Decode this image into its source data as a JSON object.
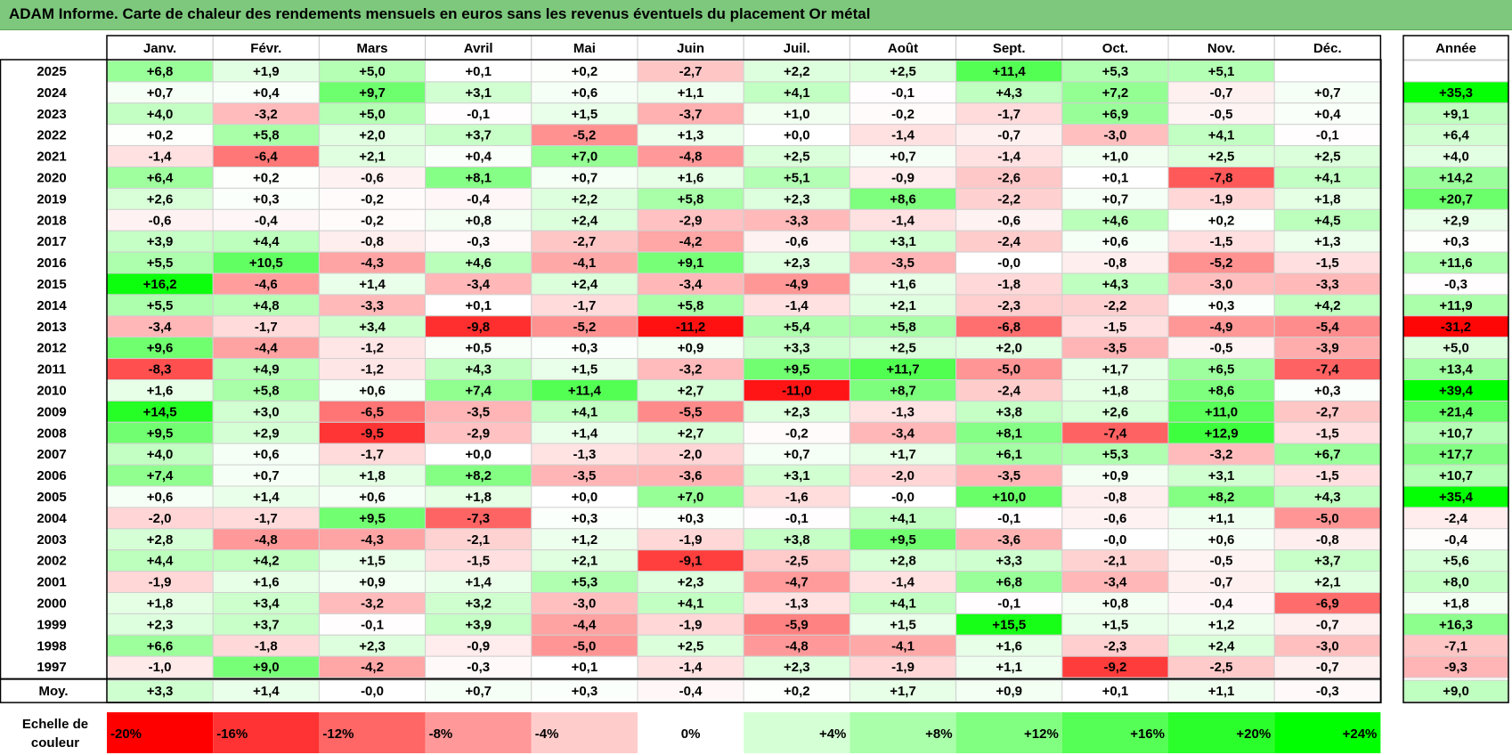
{
  "title": "ADAM Informe. Carte de chaleur des rendements mensuels en euros sans les revenus éventuels du placement Or métal",
  "chart_data": {
    "type": "heatmap",
    "title": "ADAM Informe. Carte de chaleur des rendements mensuels en euros sans les revenus éventuels du placement Or métal",
    "months": [
      "Janv.",
      "Févr.",
      "Mars",
      "Avril",
      "Mai",
      "Juin",
      "Juil.",
      "Août",
      "Sept.",
      "Oct.",
      "Nov.",
      "Déc."
    ],
    "annual_header": "Année",
    "years": [
      "2025",
      "2024",
      "2023",
      "2022",
      "2021",
      "2020",
      "2019",
      "2018",
      "2017",
      "2016",
      "2015",
      "2014",
      "2013",
      "2012",
      "2011",
      "2010",
      "2009",
      "2008",
      "2007",
      "2006",
      "2005",
      "2004",
      "2003",
      "2002",
      "2001",
      "2000",
      "1999",
      "1998",
      "1997"
    ],
    "values": [
      [
        "+6,8",
        "+1,9",
        "+5,0",
        "+0,1",
        "+0,2",
        "-2,7",
        "+2,2",
        "+2,5",
        "+11,4",
        "+5,3",
        "+5,1",
        ""
      ],
      [
        "+0,7",
        "+0,4",
        "+9,7",
        "+3,1",
        "+0,6",
        "+1,1",
        "+4,1",
        "-0,1",
        "+4,3",
        "+7,2",
        "-0,7",
        "+0,7"
      ],
      [
        "+4,0",
        "-3,2",
        "+5,0",
        "-0,1",
        "+1,5",
        "-3,7",
        "+1,0",
        "-0,2",
        "-1,7",
        "+6,9",
        "-0,5",
        "+0,4"
      ],
      [
        "+0,2",
        "+5,8",
        "+2,0",
        "+3,7",
        "-5,2",
        "+1,3",
        "+0,0",
        "-1,4",
        "-0,7",
        "-3,0",
        "+4,1",
        "-0,1"
      ],
      [
        "-1,4",
        "-6,4",
        "+2,1",
        "+0,4",
        "+7,0",
        "-4,8",
        "+2,5",
        "+0,7",
        "-1,4",
        "+1,0",
        "+2,5",
        "+2,5"
      ],
      [
        "+6,4",
        "+0,2",
        "-0,6",
        "+8,1",
        "+0,7",
        "+1,6",
        "+5,1",
        "-0,9",
        "-2,6",
        "+0,1",
        "-7,8",
        "+4,1"
      ],
      [
        "+2,6",
        "+0,3",
        "-0,2",
        "-0,4",
        "+2,2",
        "+5,8",
        "+2,3",
        "+8,6",
        "-2,2",
        "+0,7",
        "-1,9",
        "+1,8"
      ],
      [
        "-0,6",
        "-0,4",
        "-0,2",
        "+0,8",
        "+2,4",
        "-2,9",
        "-3,3",
        "-1,4",
        "-0,6",
        "+4,6",
        "+0,2",
        "+4,5"
      ],
      [
        "+3,9",
        "+4,4",
        "-0,8",
        "-0,3",
        "-2,7",
        "-4,2",
        "-0,6",
        "+3,1",
        "-2,4",
        "+0,6",
        "-1,5",
        "+1,3"
      ],
      [
        "+5,5",
        "+10,5",
        "-4,3",
        "+4,6",
        "-4,1",
        "+9,1",
        "+2,3",
        "-3,5",
        "-0,0",
        "-0,8",
        "-5,2",
        "-1,5"
      ],
      [
        "+16,2",
        "-4,6",
        "+1,4",
        "-3,4",
        "+2,4",
        "-3,4",
        "-4,9",
        "+1,6",
        "-1,8",
        "+4,3",
        "-3,0",
        "-3,3"
      ],
      [
        "+5,5",
        "+4,8",
        "-3,3",
        "+0,1",
        "-1,7",
        "+5,8",
        "-1,4",
        "+2,1",
        "-2,3",
        "-2,2",
        "+0,3",
        "+4,2"
      ],
      [
        "-3,4",
        "-1,7",
        "+3,4",
        "-9,8",
        "-5,2",
        "-11,2",
        "+5,4",
        "+5,8",
        "-6,8",
        "-1,5",
        "-4,9",
        "-5,4"
      ],
      [
        "+9,6",
        "-4,4",
        "-1,2",
        "+0,5",
        "+0,3",
        "+0,9",
        "+3,3",
        "+2,5",
        "+2,0",
        "-3,5",
        "-0,5",
        "-3,9"
      ],
      [
        "-8,3",
        "+4,9",
        "-1,2",
        "+4,3",
        "+1,5",
        "-3,2",
        "+9,5",
        "+11,7",
        "-5,0",
        "+1,7",
        "+6,5",
        "-7,4"
      ],
      [
        "+1,6",
        "+5,8",
        "+0,6",
        "+7,4",
        "+11,4",
        "+2,7",
        "-11,0",
        "+8,7",
        "-2,4",
        "+1,8",
        "+8,6",
        "+0,3"
      ],
      [
        "+14,5",
        "+3,0",
        "-6,5",
        "-3,5",
        "+4,1",
        "-5,5",
        "+2,3",
        "-1,3",
        "+3,8",
        "+2,6",
        "+11,0",
        "-2,7"
      ],
      [
        "+9,5",
        "+2,9",
        "-9,5",
        "-2,9",
        "+1,4",
        "+2,7",
        "-0,2",
        "-3,4",
        "+8,1",
        "-7,4",
        "+12,9",
        "-1,5"
      ],
      [
        "+4,0",
        "+0,6",
        "-1,7",
        "+0,0",
        "-1,3",
        "-2,0",
        "+0,7",
        "+1,7",
        "+6,1",
        "+5,3",
        "-3,2",
        "+6,7"
      ],
      [
        "+7,4",
        "+0,7",
        "+1,8",
        "+8,2",
        "-3,5",
        "-3,6",
        "+3,1",
        "-2,0",
        "-3,5",
        "+0,9",
        "+3,1",
        "-1,5"
      ],
      [
        "+0,6",
        "+1,4",
        "+0,6",
        "+1,8",
        "+0,0",
        "+7,0",
        "-1,6",
        "-0,0",
        "+10,0",
        "-0,8",
        "+8,2",
        "+4,3"
      ],
      [
        "-2,0",
        "-1,7",
        "+9,5",
        "-7,3",
        "+0,3",
        "+0,3",
        "-0,1",
        "+4,1",
        "-0,1",
        "-0,6",
        "+1,1",
        "-5,0"
      ],
      [
        "+2,8",
        "-4,8",
        "-4,3",
        "-2,1",
        "+1,2",
        "-1,9",
        "+3,8",
        "+9,5",
        "-3,6",
        "-0,0",
        "+0,6",
        "-0,8"
      ],
      [
        "+4,4",
        "+4,2",
        "+1,5",
        "-1,5",
        "+2,1",
        "-9,1",
        "-2,5",
        "+2,8",
        "+3,3",
        "-2,1",
        "-0,5",
        "+3,7"
      ],
      [
        "-1,9",
        "+1,6",
        "+0,9",
        "+1,4",
        "+5,3",
        "+2,3",
        "-4,7",
        "-1,4",
        "+6,8",
        "-3,4",
        "-0,7",
        "+2,1"
      ],
      [
        "+1,8",
        "+3,4",
        "-3,2",
        "+3,2",
        "-3,0",
        "+4,1",
        "-1,3",
        "+4,1",
        "-0,1",
        "+0,8",
        "-0,4",
        "-6,9"
      ],
      [
        "+2,3",
        "+3,7",
        "-0,1",
        "+3,9",
        "-4,4",
        "-1,9",
        "-5,9",
        "+1,5",
        "+15,5",
        "+1,5",
        "+1,2",
        "-0,7"
      ],
      [
        "+6,6",
        "-1,8",
        "+2,3",
        "-0,9",
        "-5,0",
        "+2,5",
        "-4,8",
        "-4,1",
        "+1,6",
        "-2,3",
        "+2,4",
        "-3,0"
      ],
      [
        "-1,0",
        "+9,0",
        "-4,2",
        "-0,3",
        "+0,1",
        "-1,4",
        "+2,3",
        "-1,9",
        "+1,1",
        "-9,2",
        "-2,5",
        "-0,7"
      ]
    ],
    "annual": [
      "",
      "+35,3",
      "+9,1",
      "+6,4",
      "+4,0",
      "+14,2",
      "+20,7",
      "+2,9",
      "+0,3",
      "+11,6",
      "-0,3",
      "+11,9",
      "-31,2",
      "+5,0",
      "+13,4",
      "+39,4",
      "+21,4",
      "+10,7",
      "+17,7",
      "+10,7",
      "+35,4",
      "-2,4",
      "-0,4",
      "+5,6",
      "+8,0",
      "+1,8",
      "+16,3",
      "-7,1",
      "-9,3"
    ],
    "average_label": "Moy.",
    "averages": [
      "+3,3",
      "+1,4",
      "-0,0",
      "+0,7",
      "+0,3",
      "-0,4",
      "+0,2",
      "+1,7",
      "+0,9",
      "+0,1",
      "+1,1",
      "-0,3"
    ],
    "average_annual": "+9,0",
    "scale_label": "Echelle de couleur",
    "scale": [
      "-20%",
      "-16%",
      "-12%",
      "-8%",
      "-4%",
      "0%",
      "+4%",
      "+8%",
      "+12%",
      "+16%",
      "+20%",
      "+24%"
    ],
    "scale_values": [
      -20,
      -16,
      -12,
      -8,
      -4,
      0,
      4,
      8,
      12,
      16,
      20,
      24
    ],
    "colors": {
      "negative_max": "#ff0000",
      "neutral": "#ffffff",
      "positive_max": "#00ff00",
      "title_bar": "#7dc87d"
    }
  }
}
